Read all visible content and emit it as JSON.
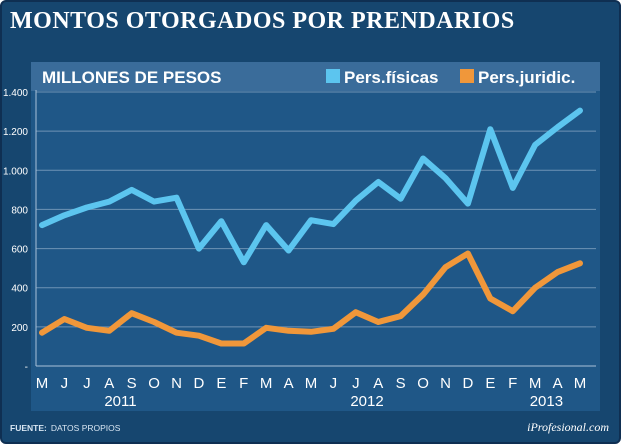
{
  "title": "MONTOS OTORGADOS POR PRENDARIOS",
  "source_label": "FUENTE:",
  "source_text": "DATOS PROPIOS",
  "brand": "iProfesional.com",
  "colors": {
    "frame": "#16466f",
    "plot_background": "#1f5787",
    "header_bar": "#3a6c9a",
    "grid": "#6f93b5",
    "series_personas_fisicas": "#5cc5ef",
    "series_personas_juridicas": "#f0973a"
  },
  "chart_data": {
    "type": "line",
    "title": "MONTOS OTORGADOS POR PRENDARIOS",
    "ylabel": "MILLONES DE PESOS",
    "xlabel": "",
    "ylim": [
      0,
      1400
    ],
    "yticks": [
      0,
      200,
      400,
      600,
      800,
      1000,
      1200,
      1400
    ],
    "ytick_labels": [
      "-",
      "200",
      "400",
      "600",
      "800",
      "1.000",
      "1.200",
      "1.400"
    ],
    "grid": true,
    "legend_position": "top-right",
    "categories": [
      "M",
      "J",
      "J",
      "A",
      "S",
      "O",
      "N",
      "D",
      "E",
      "F",
      "M",
      "A",
      "M",
      "J",
      "J",
      "A",
      "S",
      "O",
      "N",
      "D",
      "E",
      "F",
      "M",
      "A",
      "M"
    ],
    "year_labels": [
      {
        "label": "2011",
        "center_index": 3.5
      },
      {
        "label": "2012",
        "center_index": 14.5
      },
      {
        "label": "2013",
        "center_index": 22.5
      }
    ],
    "series": [
      {
        "name": "Pers.físicas",
        "color": "#5cc5ef",
        "values": [
          720,
          770,
          810,
          840,
          900,
          840,
          860,
          600,
          740,
          530,
          720,
          590,
          745,
          725,
          845,
          940,
          855,
          1060,
          960,
          830,
          1210,
          910,
          1130,
          1220,
          1305
        ]
      },
      {
        "name": "Pers.juridic.",
        "color": "#f0973a",
        "values": [
          170,
          240,
          195,
          180,
          270,
          225,
          170,
          155,
          115,
          115,
          195,
          180,
          175,
          190,
          275,
          225,
          255,
          365,
          505,
          575,
          345,
          280,
          400,
          480,
          525
        ]
      }
    ]
  }
}
